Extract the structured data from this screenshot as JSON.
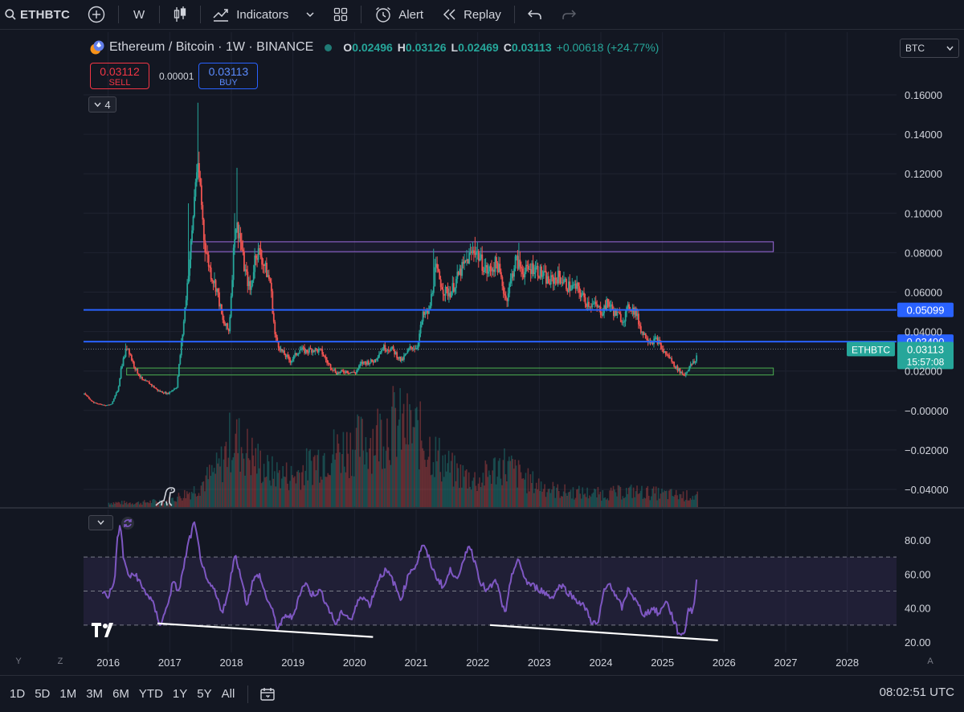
{
  "toolbar": {
    "symbol": "ETHBTC",
    "interval": "W",
    "indicators_label": "Indicators",
    "alert_label": "Alert",
    "replay_label": "Replay"
  },
  "legend": {
    "title": "Ethereum / Bitcoin · 1W · BINANCE",
    "o_key": "O",
    "o_val": "0.02496",
    "h_key": "H",
    "h_val": "0.03126",
    "l_key": "L",
    "l_val": "0.02469",
    "c_key": "C",
    "c_val": "0.03113",
    "change": "+0.00618 (+24.77%)"
  },
  "trade": {
    "sell_price": "0.03112",
    "sell_label": "SELL",
    "spread": "0.00001",
    "buy_price": "0.03113",
    "buy_label": "BUY"
  },
  "layers_count": "4",
  "currency": "BTC",
  "price_axis": {
    "ticks": [
      "0.16000",
      "0.14000",
      "0.12000",
      "0.10000",
      "0.08000",
      "0.06000",
      "0.04000",
      "0.02000",
      "−0.00000",
      "−0.02000",
      "−0.04000"
    ],
    "levels": [
      0.16,
      0.14,
      0.12,
      0.1,
      0.08,
      0.06,
      0.04,
      0.02,
      0.0,
      -0.02,
      -0.04
    ],
    "blue_level_1": {
      "value": 0.05099,
      "label": "0.05099"
    },
    "blue_level_2": {
      "value": 0.0349,
      "label": "0.03490"
    },
    "last_price": {
      "value": 0.03113,
      "label": "0.03113",
      "countdown": "15:57:08",
      "symbol_tag": "ETHBTC"
    }
  },
  "rsi_axis": {
    "ticks": [
      "80.00",
      "60.00",
      "40.00",
      "20.00"
    ],
    "levels": [
      80,
      60,
      40,
      20
    ],
    "band_top": 70,
    "band_mid": 50,
    "band_bottom": 30
  },
  "time_axis": {
    "labels": [
      "2016",
      "2017",
      "2018",
      "2019",
      "2020",
      "2021",
      "2022",
      "2023",
      "2024",
      "2025",
      "2026",
      "2027",
      "2028"
    ],
    "years": [
      2016,
      2017,
      2018,
      2019,
      2020,
      2021,
      2022,
      2023,
      2024,
      2025,
      2026,
      2027,
      2028
    ]
  },
  "bottom": {
    "ranges": [
      "1D",
      "5D",
      "1M",
      "3M",
      "6M",
      "YTD",
      "1Y",
      "5Y",
      "All"
    ],
    "clock": "08:02:51 UTC"
  },
  "axis_letters": {
    "y": "Y",
    "z": "Z",
    "a": "A"
  },
  "colors": {
    "up": "#26a69a",
    "down": "#ef5350",
    "blue_line": "#2962ff",
    "purple_box": "#9c6bdf",
    "green_box": "#4caf50",
    "rsi": "#7e57c2",
    "bg": "#131722"
  },
  "chart_data": {
    "type": "candlestick",
    "title": "Ethereum / Bitcoin · 1W · BINANCE",
    "x_range": [
      2015.6,
      2028.8
    ],
    "y_range": [
      -0.045,
      0.165
    ],
    "price_path": [
      [
        2015.6,
        0.0085
      ],
      [
        2015.75,
        0.004
      ],
      [
        2015.95,
        0.0025
      ],
      [
        2016.05,
        0.0035
      ],
      [
        2016.15,
        0.011
      ],
      [
        2016.2,
        0.022
      ],
      [
        2016.3,
        0.033
      ],
      [
        2016.38,
        0.025
      ],
      [
        2016.45,
        0.02
      ],
      [
        2016.55,
        0.015
      ],
      [
        2016.65,
        0.014
      ],
      [
        2016.8,
        0.01
      ],
      [
        2016.95,
        0.0085
      ],
      [
        2017.1,
        0.012
      ],
      [
        2017.2,
        0.04
      ],
      [
        2017.35,
        0.09
      ],
      [
        2017.42,
        0.123
      ],
      [
        2017.48,
        0.115
      ],
      [
        2017.55,
        0.085
      ],
      [
        2017.65,
        0.07
      ],
      [
        2017.75,
        0.062
      ],
      [
        2017.85,
        0.045
      ],
      [
        2017.95,
        0.04
      ],
      [
        2018.05,
        0.095
      ],
      [
        2018.12,
        0.09
      ],
      [
        2018.2,
        0.072
      ],
      [
        2018.3,
        0.06
      ],
      [
        2018.38,
        0.08
      ],
      [
        2018.45,
        0.08
      ],
      [
        2018.55,
        0.071
      ],
      [
        2018.62,
        0.065
      ],
      [
        2018.7,
        0.037
      ],
      [
        2018.8,
        0.03
      ],
      [
        2018.95,
        0.025
      ],
      [
        2019.1,
        0.031
      ],
      [
        2019.2,
        0.03
      ],
      [
        2019.3,
        0.031
      ],
      [
        2019.45,
        0.03
      ],
      [
        2019.55,
        0.024
      ],
      [
        2019.7,
        0.019
      ],
      [
        2019.85,
        0.02
      ],
      [
        2020.0,
        0.019
      ],
      [
        2020.1,
        0.024
      ],
      [
        2020.3,
        0.025
      ],
      [
        2020.45,
        0.032
      ],
      [
        2020.6,
        0.031
      ],
      [
        2020.75,
        0.025
      ],
      [
        2020.9,
        0.032
      ],
      [
        2021.0,
        0.032
      ],
      [
        2021.1,
        0.048
      ],
      [
        2021.2,
        0.05
      ],
      [
        2021.3,
        0.072
      ],
      [
        2021.45,
        0.06
      ],
      [
        2021.55,
        0.06
      ],
      [
        2021.7,
        0.07
      ],
      [
        2021.85,
        0.078
      ],
      [
        2021.95,
        0.082
      ],
      [
        2022.05,
        0.075
      ],
      [
        2022.15,
        0.07
      ],
      [
        2022.3,
        0.075
      ],
      [
        2022.45,
        0.056
      ],
      [
        2022.6,
        0.076
      ],
      [
        2022.75,
        0.07
      ],
      [
        2022.9,
        0.073
      ],
      [
        2023.0,
        0.07
      ],
      [
        2023.15,
        0.065
      ],
      [
        2023.3,
        0.068
      ],
      [
        2023.45,
        0.063
      ],
      [
        2023.6,
        0.062
      ],
      [
        2023.75,
        0.055
      ],
      [
        2023.9,
        0.053
      ],
      [
        2024.0,
        0.05
      ],
      [
        2024.1,
        0.055
      ],
      [
        2024.2,
        0.05
      ],
      [
        2024.35,
        0.046
      ],
      [
        2024.45,
        0.053
      ],
      [
        2024.55,
        0.05
      ],
      [
        2024.65,
        0.04
      ],
      [
        2024.8,
        0.035
      ],
      [
        2024.9,
        0.036
      ],
      [
        2025.0,
        0.03
      ],
      [
        2025.1,
        0.027
      ],
      [
        2025.2,
        0.022
      ],
      [
        2025.3,
        0.019
      ],
      [
        2025.35,
        0.018
      ],
      [
        2025.42,
        0.022
      ],
      [
        2025.48,
        0.024
      ],
      [
        2025.53,
        0.025
      ],
      [
        2025.56,
        0.0311
      ]
    ],
    "spikes": [
      [
        2017.44,
        0.156
      ],
      [
        2018.08,
        0.123
      ],
      [
        2021.95,
        0.088
      ],
      [
        2022.65,
        0.085
      ],
      [
        2017.3,
        0.105
      ],
      [
        2018.42,
        0.085
      ],
      [
        2016.28,
        0.034
      ],
      [
        2021.28,
        0.082
      ],
      [
        2018.05,
        0.1
      ]
    ],
    "ohlc_last": {
      "open": 0.02496,
      "high": 0.03126,
      "low": 0.02469,
      "close": 0.03113
    },
    "horizontal_levels": [
      0.05099,
      0.0349
    ],
    "resistance_box": {
      "x": [
        2017.35,
        2026.8
      ],
      "y": [
        0.0805,
        0.0855
      ]
    },
    "support_box": {
      "x": [
        2016.3,
        2026.8
      ],
      "y": [
        0.018,
        0.0215
      ]
    },
    "volume_shape": [
      [
        2016.0,
        0.05
      ],
      [
        2016.5,
        0.05
      ],
      [
        2017.0,
        0.08
      ],
      [
        2017.4,
        0.2
      ],
      [
        2017.8,
        0.45
      ],
      [
        2018.0,
        0.8
      ],
      [
        2018.3,
        0.6
      ],
      [
        2018.6,
        0.4
      ],
      [
        2019.0,
        0.35
      ],
      [
        2019.5,
        0.6
      ],
      [
        2020.2,
        0.75
      ],
      [
        2020.6,
        0.95
      ],
      [
        2021.0,
        0.85
      ],
      [
        2021.3,
        0.6
      ],
      [
        2021.6,
        0.4
      ],
      [
        2022.0,
        0.3
      ],
      [
        2022.4,
        0.5
      ],
      [
        2022.8,
        0.3
      ],
      [
        2023.3,
        0.18
      ],
      [
        2024.0,
        0.15
      ],
      [
        2024.5,
        0.18
      ],
      [
        2025.0,
        0.15
      ],
      [
        2025.56,
        0.12
      ]
    ],
    "rsi_path": [
      [
        2015.9,
        50
      ],
      [
        2016.0,
        47
      ],
      [
        2016.1,
        55
      ],
      [
        2016.15,
        80
      ],
      [
        2016.2,
        90
      ],
      [
        2016.25,
        68
      ],
      [
        2016.35,
        58
      ],
      [
        2016.45,
        60
      ],
      [
        2016.55,
        52
      ],
      [
        2016.7,
        45
      ],
      [
        2016.85,
        30
      ],
      [
        2016.95,
        40
      ],
      [
        2017.05,
        55
      ],
      [
        2017.15,
        50
      ],
      [
        2017.3,
        78
      ],
      [
        2017.4,
        90
      ],
      [
        2017.5,
        70
      ],
      [
        2017.6,
        55
      ],
      [
        2017.7,
        52
      ],
      [
        2017.85,
        38
      ],
      [
        2017.95,
        48
      ],
      [
        2018.05,
        72
      ],
      [
        2018.15,
        60
      ],
      [
        2018.25,
        42
      ],
      [
        2018.35,
        56
      ],
      [
        2018.45,
        60
      ],
      [
        2018.55,
        48
      ],
      [
        2018.65,
        40
      ],
      [
        2018.75,
        28
      ],
      [
        2018.9,
        36
      ],
      [
        2019.0,
        34
      ],
      [
        2019.1,
        48
      ],
      [
        2019.2,
        55
      ],
      [
        2019.3,
        48
      ],
      [
        2019.45,
        50
      ],
      [
        2019.6,
        38
      ],
      [
        2019.7,
        30
      ],
      [
        2019.8,
        38
      ],
      [
        2019.95,
        33
      ],
      [
        2020.1,
        48
      ],
      [
        2020.25,
        42
      ],
      [
        2020.4,
        58
      ],
      [
        2020.5,
        62
      ],
      [
        2020.6,
        58
      ],
      [
        2020.75,
        45
      ],
      [
        2020.9,
        62
      ],
      [
        2021.0,
        65
      ],
      [
        2021.1,
        78
      ],
      [
        2021.2,
        70
      ],
      [
        2021.3,
        60
      ],
      [
        2021.45,
        52
      ],
      [
        2021.55,
        62
      ],
      [
        2021.7,
        58
      ],
      [
        2021.85,
        78
      ],
      [
        2021.95,
        68
      ],
      [
        2022.05,
        55
      ],
      [
        2022.15,
        50
      ],
      [
        2022.3,
        56
      ],
      [
        2022.45,
        35
      ],
      [
        2022.55,
        60
      ],
      [
        2022.65,
        68
      ],
      [
        2022.8,
        55
      ],
      [
        2022.95,
        52
      ],
      [
        2023.05,
        50
      ],
      [
        2023.2,
        46
      ],
      [
        2023.35,
        54
      ],
      [
        2023.5,
        48
      ],
      [
        2023.6,
        45
      ],
      [
        2023.75,
        40
      ],
      [
        2023.85,
        32
      ],
      [
        2023.95,
        30
      ],
      [
        2024.05,
        50
      ],
      [
        2024.15,
        55
      ],
      [
        2024.25,
        46
      ],
      [
        2024.35,
        40
      ],
      [
        2024.45,
        52
      ],
      [
        2024.55,
        45
      ],
      [
        2024.7,
        36
      ],
      [
        2024.85,
        40
      ],
      [
        2024.95,
        36
      ],
      [
        2025.05,
        45
      ],
      [
        2025.15,
        36
      ],
      [
        2025.25,
        26
      ],
      [
        2025.35,
        24
      ],
      [
        2025.42,
        40
      ],
      [
        2025.48,
        38
      ],
      [
        2025.53,
        45
      ],
      [
        2025.56,
        62
      ]
    ],
    "rsi_trendlines": [
      {
        "from": [
          2016.8,
          31
        ],
        "to": [
          2020.3,
          23
        ]
      },
      {
        "from": [
          2022.2,
          30
        ],
        "to": [
          2025.9,
          21
        ]
      }
    ]
  }
}
